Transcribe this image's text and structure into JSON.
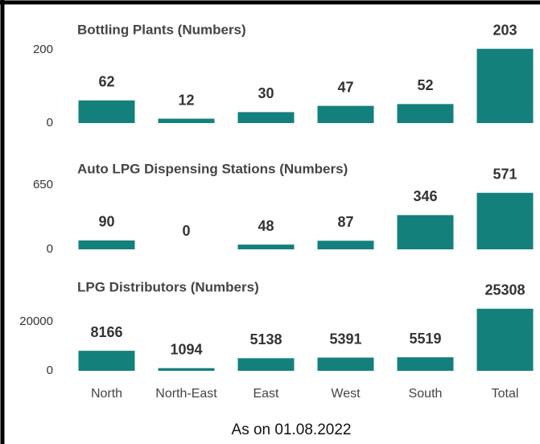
{
  "chart_data": [
    {
      "type": "bar",
      "title": "Bottling Plants (Numbers)",
      "values": [
        62,
        12,
        30,
        47,
        52,
        203
      ],
      "color": "#14807c",
      "ylim": [
        0,
        210
      ],
      "yticks": [
        0,
        200
      ]
    },
    {
      "type": "bar",
      "title": "Auto LPG Dispensing Stations (Numbers)",
      "values": [
        90,
        0,
        48,
        87,
        346,
        571
      ],
      "color": "#14807c",
      "ylim": [
        0,
        650
      ],
      "yticks": [
        0,
        650
      ]
    },
    {
      "type": "bar",
      "title": "LPG Distributors (Numbers)",
      "categories": [
        "North",
        "North-East",
        "East",
        "West",
        "South",
        "Total"
      ],
      "values": [
        8166,
        1094,
        5138,
        5391,
        5519,
        25308
      ],
      "color": "#14807c",
      "ylim": [
        0,
        26000
      ],
      "yticks": [
        0,
        20000
      ]
    }
  ],
  "footnote": "As on 01.08.2022"
}
